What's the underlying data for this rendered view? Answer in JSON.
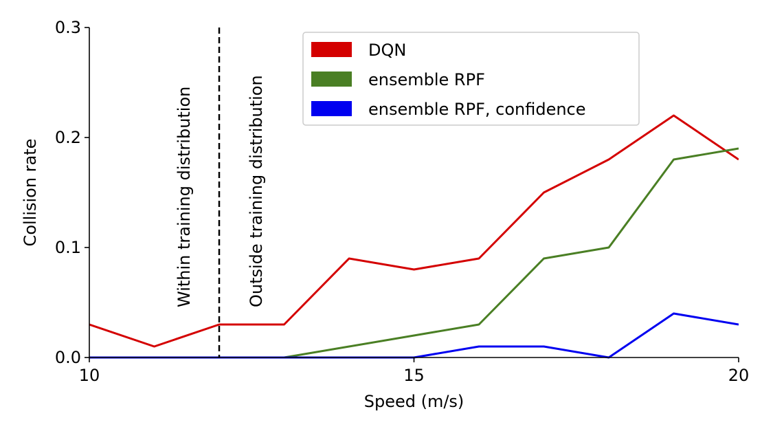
{
  "chart_data": {
    "type": "line",
    "xlabel": "Speed (m/s)",
    "ylabel": "Collision rate",
    "xlim": [
      10,
      20
    ],
    "ylim": [
      0,
      0.3
    ],
    "x_ticks": [
      10,
      15,
      20
    ],
    "y_ticks": [
      "0.0",
      "0.1",
      "0.2",
      "0.3"
    ],
    "grid": false,
    "legend_position": "top-right",
    "x": [
      10,
      11,
      12,
      13,
      14,
      15,
      16,
      17,
      18,
      19,
      20
    ],
    "series": [
      {
        "name": "DQN",
        "color": "#d40000",
        "values": [
          0.03,
          0.01,
          0.03,
          0.03,
          0.09,
          0.08,
          0.09,
          0.15,
          0.18,
          0.22,
          0.18
        ]
      },
      {
        "name": "ensemble RPF",
        "color": "#4a7f24",
        "values": [
          0.0,
          0.0,
          0.0,
          0.0,
          0.01,
          0.02,
          0.03,
          0.09,
          0.1,
          0.18,
          0.19
        ]
      },
      {
        "name": "ensemble RPF, confidence",
        "color": "#0000f0",
        "values": [
          0.0,
          0.0,
          0.0,
          0.0,
          0.0,
          0.0,
          0.01,
          0.01,
          0.0,
          0.04,
          0.03
        ]
      }
    ],
    "divider": {
      "x": 12,
      "style": "dashed",
      "label_left": "Within training distribution",
      "label_right": "Outside training distribution"
    }
  }
}
